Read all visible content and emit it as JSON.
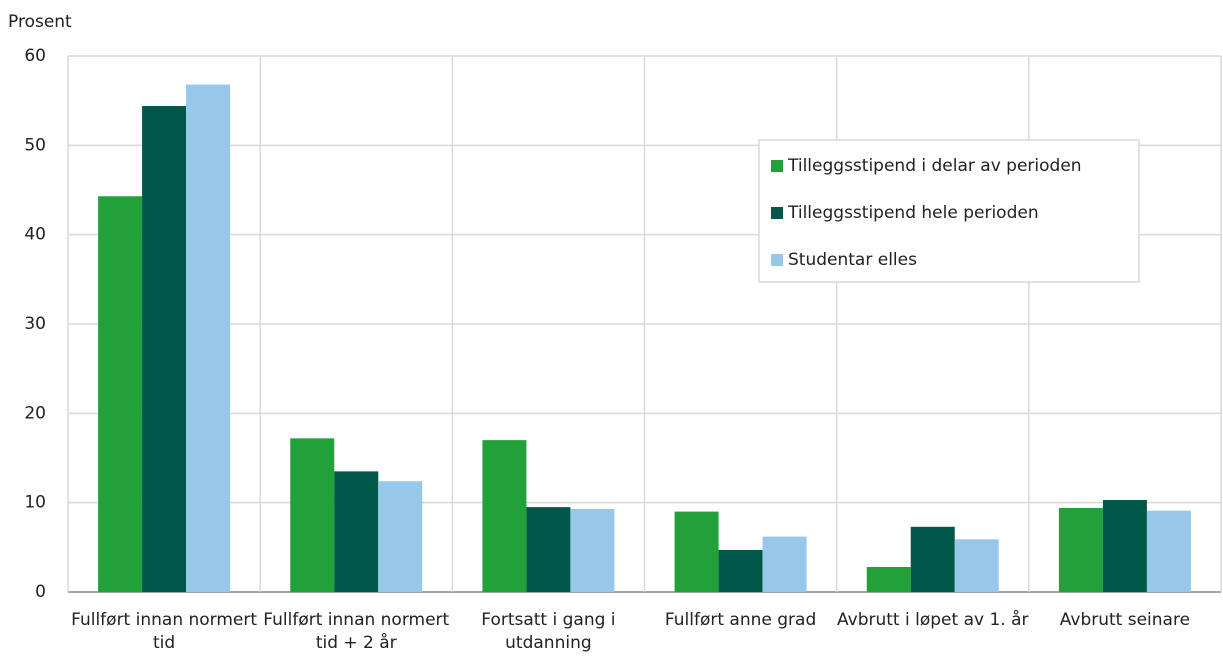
{
  "chart_data": {
    "type": "bar",
    "y_label": "Prosent",
    "categories": [
      "Fullført innan normert tid",
      "Fullført innan normert tid + 2 år",
      "Fortsatt i gang i utdanning",
      "Fullført anne grad",
      "Avbrutt i løpet av 1. år",
      "Avbrutt seinare"
    ],
    "series": [
      {
        "name": "Tilleggsstipend i delar av perioden",
        "color": "#22a03a",
        "values": [
          44.3,
          17.2,
          17.0,
          9.0,
          2.8,
          9.4
        ]
      },
      {
        "name": "Tilleggsstipend hele perioden",
        "color": "#00574a",
        "values": [
          54.4,
          13.5,
          9.5,
          4.7,
          7.3,
          10.3
        ]
      },
      {
        "name": "Studentar elles",
        "color": "#97c8ea",
        "values": [
          56.8,
          12.4,
          9.3,
          6.2,
          5.9,
          9.1
        ]
      }
    ],
    "ylim": [
      0,
      60
    ],
    "yticks": [
      0,
      10,
      20,
      30,
      40,
      50,
      60
    ],
    "grid": true,
    "legend": "upper right"
  }
}
